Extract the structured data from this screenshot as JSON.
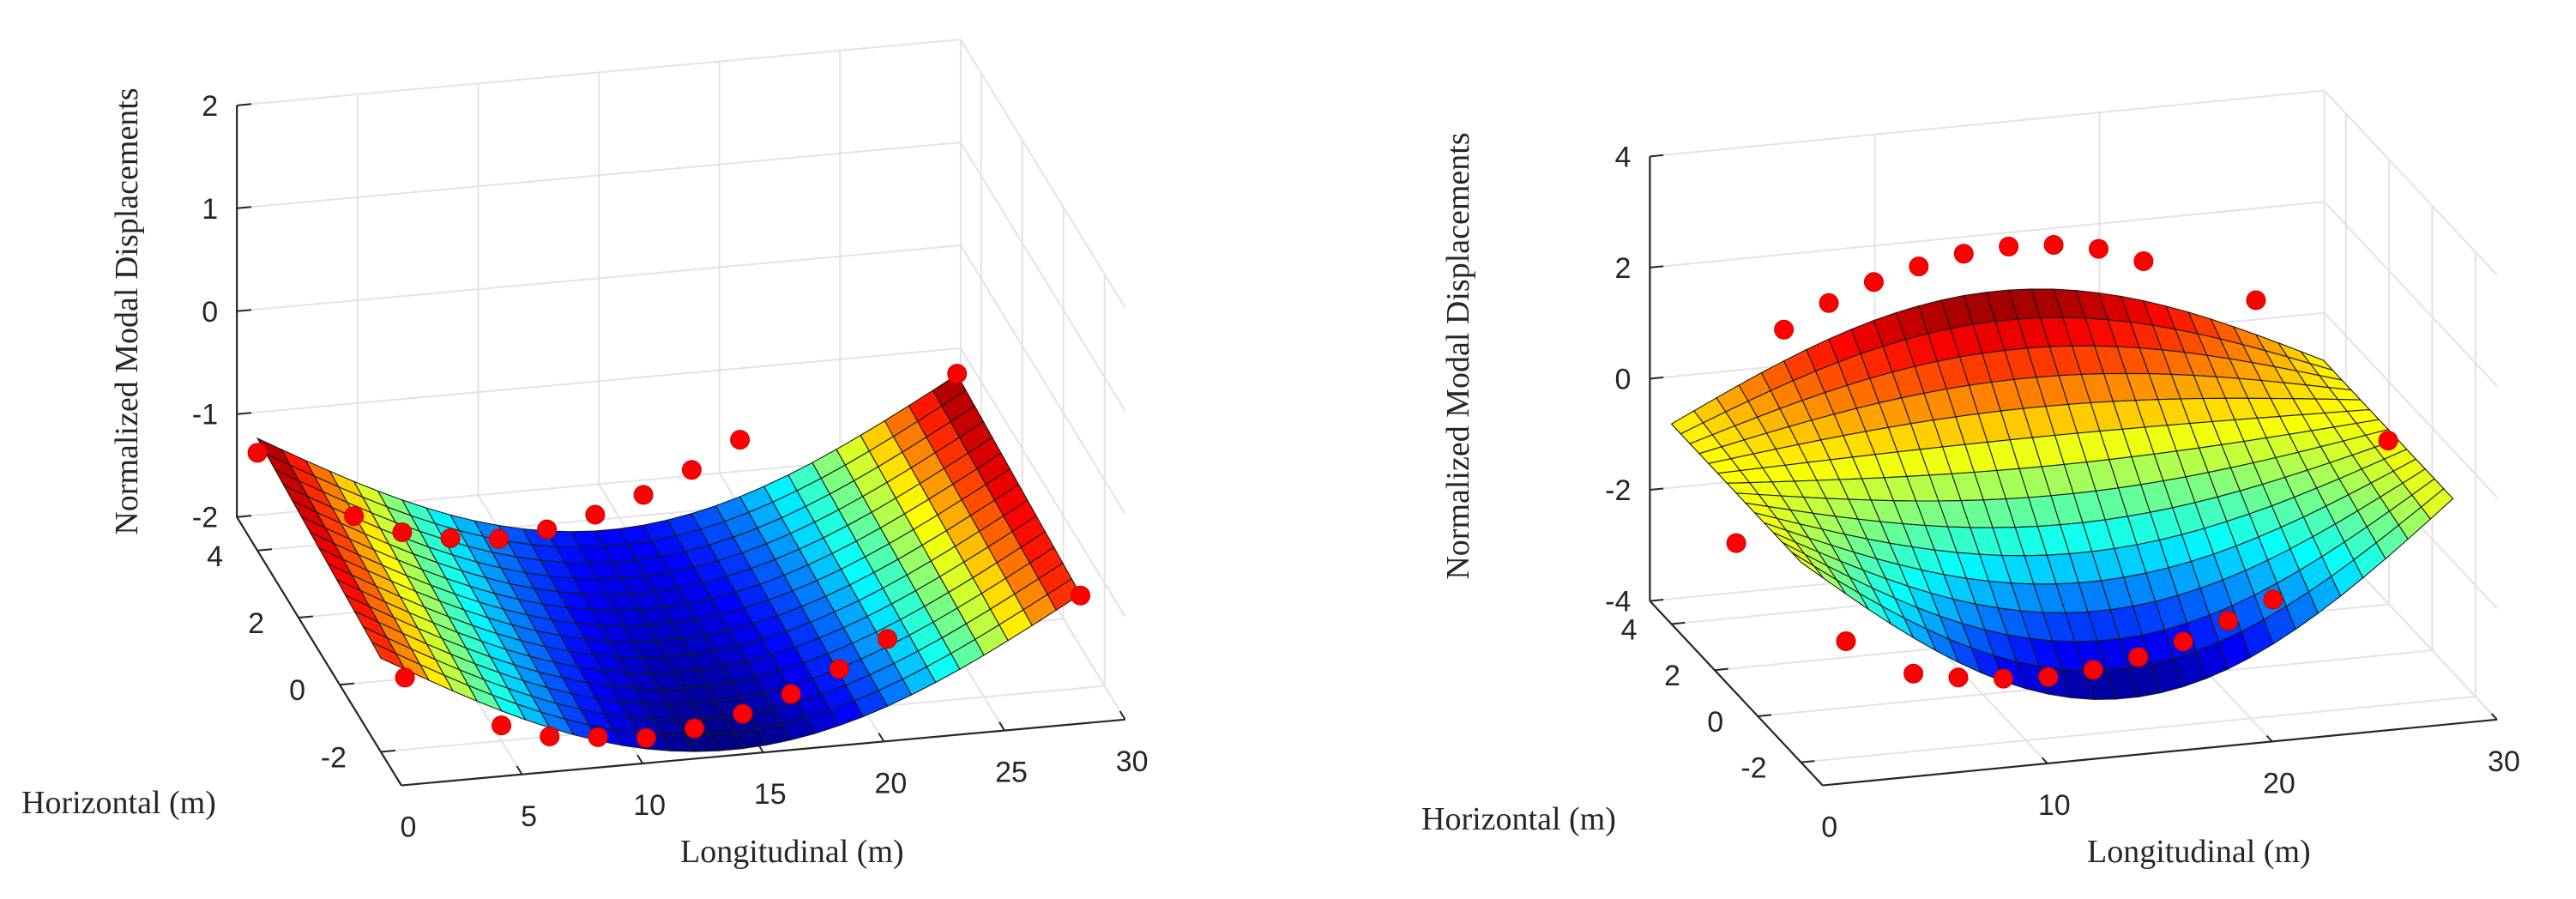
{
  "chart_data": [
    {
      "type": "surface",
      "xlabel": "Longitudinal (m)",
      "ylabel": "Horizontal (m)",
      "zlabel": "Normalized Modal Displacements",
      "xlim": [
        0,
        30
      ],
      "ylim": [
        -3,
        5
      ],
      "zlim": [
        -2,
        2
      ],
      "x_ticks": [
        "0",
        "5",
        "10",
        "15",
        "20",
        "25",
        "30"
      ],
      "y_ticks": [
        "-2",
        "0",
        "2",
        "4"
      ],
      "z_ticks": [
        "-2",
        "-1",
        "0",
        "1",
        "2"
      ],
      "mode_shape": "symmetric-sag",
      "surface_x_range": [
        0,
        29
      ],
      "surface_y_range": [
        -2,
        4
      ],
      "surface_z_ends": -1.0,
      "surface_z_min": -2.2,
      "sensors": [
        {
          "x": 0,
          "y": 4,
          "z": -1.05
        },
        {
          "x": 1,
          "y": -2,
          "z": -1.3
        },
        {
          "x": 4,
          "y": 4,
          "z": -1.75
        },
        {
          "x": 6,
          "y": 4,
          "z": -1.95
        },
        {
          "x": 8,
          "y": 4,
          "z": -2.05
        },
        {
          "x": 10,
          "y": 4,
          "z": -2.1
        },
        {
          "x": 12,
          "y": 4,
          "z": -2.05
        },
        {
          "x": 14,
          "y": 4,
          "z": -1.95
        },
        {
          "x": 16,
          "y": 4,
          "z": -1.8
        },
        {
          "x": 18,
          "y": 4,
          "z": -1.6
        },
        {
          "x": 20,
          "y": 4,
          "z": -1.35
        },
        {
          "x": 5,
          "y": -2,
          "z": -1.85
        },
        {
          "x": 7,
          "y": -2,
          "z": -2.0
        },
        {
          "x": 9,
          "y": -2,
          "z": -2.05
        },
        {
          "x": 11,
          "y": -2,
          "z": -2.1
        },
        {
          "x": 13,
          "y": -2,
          "z": -2.05
        },
        {
          "x": 15,
          "y": -2,
          "z": -1.95
        },
        {
          "x": 17,
          "y": -2,
          "z": -1.8
        },
        {
          "x": 19,
          "y": -2,
          "z": -1.6
        },
        {
          "x": 21,
          "y": -2,
          "z": -1.35
        },
        {
          "x": 29,
          "y": 4,
          "z": -0.9
        },
        {
          "x": 29,
          "y": -2,
          "z": -1.1
        }
      ]
    },
    {
      "type": "surface",
      "xlabel": "Longitudinal (m)",
      "ylabel": "Horizontal (m)",
      "zlabel": "Normalized Modal Displacements",
      "xlim": [
        0,
        30
      ],
      "ylim": [
        -3,
        5
      ],
      "zlim": [
        -4,
        4
      ],
      "x_ticks": [
        "0",
        "10",
        "20",
        "30"
      ],
      "y_ticks": [
        "-2",
        "0",
        "2",
        "4"
      ],
      "z_ticks": [
        "-4",
        "-2",
        "0",
        "2",
        "4"
      ],
      "mode_shape": "torsional",
      "surface_x_range": [
        0,
        29
      ],
      "surface_y_range": [
        -2,
        4
      ],
      "torsion_amplitude": 2.2,
      "sensors": [
        {
          "x": 0,
          "y": 1,
          "z": -1.3
        },
        {
          "x": 2,
          "y": -2,
          "z": -1.9
        },
        {
          "x": 5,
          "y": 4,
          "z": 1.1
        },
        {
          "x": 7,
          "y": 4,
          "z": 1.5
        },
        {
          "x": 9,
          "y": 4,
          "z": 1.8
        },
        {
          "x": 11,
          "y": 4,
          "z": 2.0
        },
        {
          "x": 13,
          "y": 4,
          "z": 2.15
        },
        {
          "x": 15,
          "y": 4,
          "z": 2.2
        },
        {
          "x": 17,
          "y": 4,
          "z": 2.15
        },
        {
          "x": 19,
          "y": 4,
          "z": 2.0
        },
        {
          "x": 21,
          "y": 4,
          "z": 1.7
        },
        {
          "x": 26,
          "y": 4,
          "z": 0.8
        },
        {
          "x": 5,
          "y": -2,
          "z": -2.6
        },
        {
          "x": 7,
          "y": -2,
          "z": -2.75
        },
        {
          "x": 9,
          "y": -2,
          "z": -2.85
        },
        {
          "x": 11,
          "y": -2,
          "z": -2.9
        },
        {
          "x": 13,
          "y": -2,
          "z": -2.85
        },
        {
          "x": 15,
          "y": -2,
          "z": -2.7
        },
        {
          "x": 17,
          "y": -2,
          "z": -2.5
        },
        {
          "x": 19,
          "y": -2,
          "z": -2.2
        },
        {
          "x": 21,
          "y": -2,
          "z": -1.9
        },
        {
          "x": 29,
          "y": 1,
          "z": -0.6
        }
      ]
    }
  ]
}
